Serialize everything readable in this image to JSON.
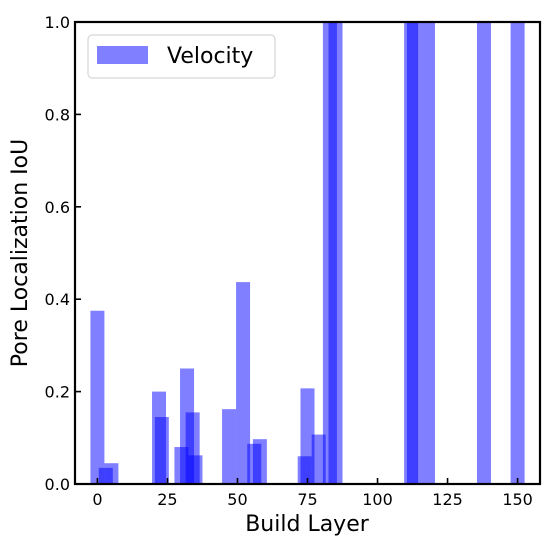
{
  "chart_data": {
    "type": "bar",
    "xlabel": "Build Layer",
    "ylabel": "Pore Localization IoU",
    "xlim": [
      -8,
      158
    ],
    "ylim": [
      0,
      1.0
    ],
    "xticks": [
      0,
      25,
      50,
      75,
      100,
      125,
      150
    ],
    "yticks": [
      0.0,
      0.2,
      0.4,
      0.6,
      0.8,
      1.0
    ],
    "xtick_labels": [
      "0",
      "25",
      "50",
      "75",
      "100",
      "125",
      "150"
    ],
    "ytick_labels": [
      "0.0",
      "0.2",
      "0.4",
      "0.6",
      "0.8",
      "1.0"
    ],
    "grid": false,
    "legend": {
      "position": "top-left"
    },
    "series": [
      {
        "name": "Velocity",
        "color": "#0000ff",
        "opacity": 0.5,
        "bar_width": 5,
        "x": [
          0,
          3,
          5,
          22,
          23,
          30,
          32,
          34,
          35,
          47,
          52,
          56,
          58,
          74,
          75,
          79,
          83,
          85,
          112,
          113,
          118,
          138,
          150
        ],
        "values": [
          0.375,
          0.035,
          0.045,
          0.2,
          0.145,
          0.08,
          0.25,
          0.155,
          0.062,
          0.162,
          0.437,
          0.087,
          0.097,
          0.06,
          0.207,
          0.107,
          1.0,
          1.0,
          1.0,
          1.0,
          1.0,
          1.0,
          1.0
        ]
      }
    ]
  }
}
